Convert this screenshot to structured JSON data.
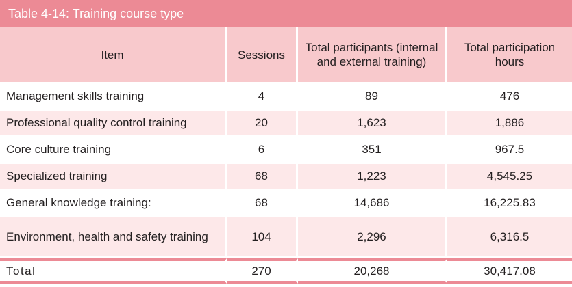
{
  "title": "Table 4-14: Training course type",
  "headers": {
    "item": "Item",
    "sessions": "Sessions",
    "participants": "Total participants (internal and external training)",
    "hours": "Total participation hours"
  },
  "rows": [
    {
      "item": "Management skills training",
      "sessions": "4",
      "participants": "89",
      "hours": "476"
    },
    {
      "item": "Professional quality control training",
      "sessions": "20",
      "participants": "1,623",
      "hours": "1,886"
    },
    {
      "item": "Core culture training",
      "sessions": "6",
      "participants": "351",
      "hours": "967.5"
    },
    {
      "item": "Specialized training",
      "sessions": "68",
      "participants": "1,223",
      "hours": "4,545.25"
    },
    {
      "item": "General knowledge training:",
      "sessions": "68",
      "participants": "14,686",
      "hours": "16,225.83"
    },
    {
      "item": "Environment, health and safety training",
      "sessions": "104",
      "participants": "2,296",
      "hours": "6,316.5"
    }
  ],
  "total": {
    "item": "Total",
    "sessions": "270",
    "participants": "20,268",
    "hours": "30,417.08"
  },
  "colors": {
    "accent": "#ec8a95",
    "header_bg": "#f8c9cc",
    "row_alt": "#fde8e9"
  }
}
